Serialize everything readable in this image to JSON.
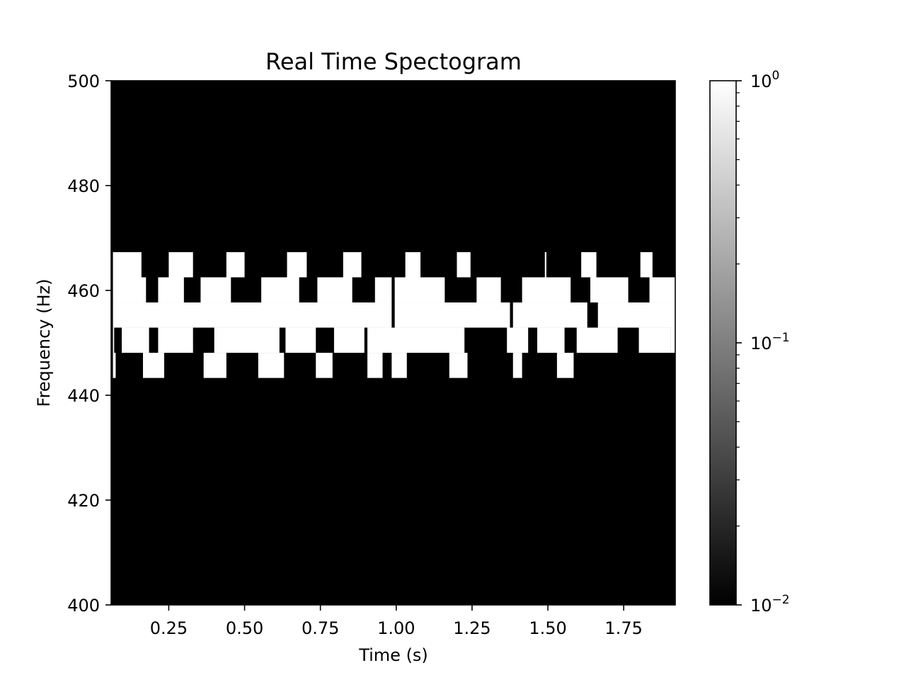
{
  "chart_data": {
    "type": "heatmap",
    "title": "Real Time Spectogram",
    "xlabel": "Time (s)",
    "ylabel": "Frequency (Hz)",
    "xlim": [
      0.06,
      1.92
    ],
    "ylim": [
      400,
      500
    ],
    "x_ticks": [
      0.25,
      0.5,
      0.75,
      1.0,
      1.25,
      1.5,
      1.75
    ],
    "x_tick_labels": [
      "0.25",
      "0.50",
      "0.75",
      "1.00",
      "1.25",
      "1.50",
      "1.75"
    ],
    "y_ticks": [
      400,
      420,
      440,
      460,
      480,
      500
    ],
    "y_tick_labels": [
      "400",
      "420",
      "440",
      "460",
      "480",
      "500"
    ],
    "colormap": "gray",
    "colorbar": {
      "scale": "log",
      "range": [
        0.01,
        1
      ],
      "ticks": [
        {
          "value": 0.01,
          "base": "10",
          "exp": "−2"
        },
        {
          "value": 0.1,
          "base": "10",
          "exp": "−1"
        },
        {
          "value": 1,
          "base": "10",
          "exp": "0"
        }
      ]
    },
    "background_value": 0.01,
    "band_value": 1,
    "frequency_bands": [
      {
        "low": 462.5,
        "high": 467.3
      },
      {
        "low": 457.7,
        "high": 462.5
      },
      {
        "low": 452.9,
        "high": 457.7
      },
      {
        "low": 448.1,
        "high": 452.9
      },
      {
        "low": 443.3,
        "high": 448.1
      }
    ],
    "cells": [
      {
        "band": 0,
        "segments": [
          [
            0.066,
            0.16
          ],
          [
            0.25,
            0.33
          ],
          [
            0.44,
            0.5
          ],
          [
            0.64,
            0.705
          ],
          [
            0.825,
            0.885
          ],
          [
            1.03,
            1.08
          ],
          [
            1.2,
            1.245
          ],
          [
            1.49,
            1.495
          ],
          [
            1.61,
            1.66
          ],
          [
            1.805,
            1.845
          ]
        ]
      },
      {
        "band": 1,
        "segments": [
          [
            0.066,
            0.175
          ],
          [
            0.215,
            0.3
          ],
          [
            0.355,
            0.455
          ],
          [
            0.555,
            0.68
          ],
          [
            0.74,
            0.855
          ],
          [
            0.93,
            0.985
          ],
          [
            0.995,
            1.16
          ],
          [
            1.265,
            1.345
          ],
          [
            1.415,
            1.575
          ],
          [
            1.64,
            1.765
          ],
          [
            1.835,
            1.92
          ]
        ]
      },
      {
        "band": 2,
        "segments": [
          [
            0.066,
            0.985
          ],
          [
            0.995,
            1.375
          ],
          [
            1.385,
            1.63
          ],
          [
            1.665,
            1.92
          ]
        ]
      },
      {
        "band": 3,
        "segments": [
          [
            0.066,
            0.07
          ],
          [
            0.095,
            0.185
          ],
          [
            0.215,
            0.33
          ],
          [
            0.4,
            0.615
          ],
          [
            0.635,
            0.735
          ],
          [
            0.795,
            0.895
          ],
          [
            0.905,
            1.225
          ],
          [
            1.365,
            1.435
          ],
          [
            1.465,
            1.555
          ],
          [
            1.595,
            1.73
          ],
          [
            1.8,
            1.905
          ],
          [
            1.905,
            1.92
          ]
        ]
      },
      {
        "band": 4,
        "segments": [
          [
            0.066,
            0.075
          ],
          [
            0.165,
            0.235
          ],
          [
            0.365,
            0.44
          ],
          [
            0.545,
            0.63
          ],
          [
            0.735,
            0.79
          ],
          [
            0.905,
            0.955
          ],
          [
            0.985,
            1.035
          ],
          [
            1.175,
            1.235
          ],
          [
            1.385,
            1.415
          ],
          [
            1.53,
            1.585
          ]
        ]
      }
    ]
  }
}
